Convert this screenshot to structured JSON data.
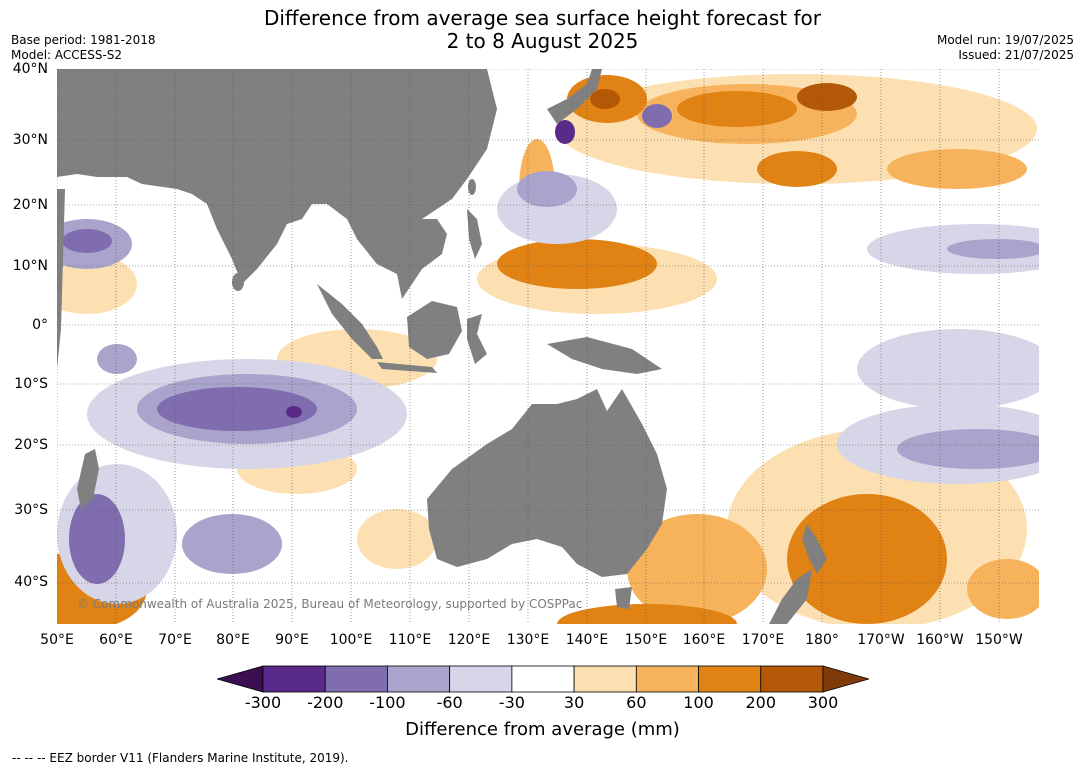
{
  "title": {
    "line1": "Difference from average sea surface height forecast for",
    "line2": "2 to 8 August 2025"
  },
  "meta": {
    "base_period": "Base period: 1981-2018",
    "model": "Model: ACCESS-S2",
    "model_run": "Model run: 19/07/2025",
    "issued": "Issued: 21/07/2025"
  },
  "map": {
    "lat_labels": [
      "40°N",
      "30°N",
      "20°N",
      "10°N",
      "0°",
      "10°S",
      "20°S",
      "30°S",
      "40°S"
    ],
    "lon_labels": [
      "50°E",
      "60°E",
      "70°E",
      "80°E",
      "90°E",
      "100°E",
      "110°E",
      "120°E",
      "130°E",
      "140°E",
      "150°E",
      "160°E",
      "170°E",
      "180°",
      "170°W",
      "160°W",
      "150°W"
    ],
    "copyright": "© Commonwealth of Australia 2025, Bureau of Meteorology, supported by COSPPac",
    "colors": {
      "land": "#808080",
      "ocean_neutral": "#ffffff",
      "grid": "#555555"
    }
  },
  "colorbar": {
    "label": "Difference from average (mm)",
    "ticks": [
      "-300",
      "-200",
      "-100",
      "-60",
      "-30",
      "30",
      "60",
      "100",
      "200",
      "300"
    ],
    "colors": [
      "#3b0f52",
      "#5a2a8a",
      "#7f6db0",
      "#aaa3cc",
      "#d6d6e8",
      "#ffffff",
      "#fde0b2",
      "#f7b35b",
      "#e08214",
      "#b35806",
      "#7f3b08"
    ]
  },
  "footnote": "--  --  -- EEZ border V11 (Flanders Marine Institute, 2019)."
}
